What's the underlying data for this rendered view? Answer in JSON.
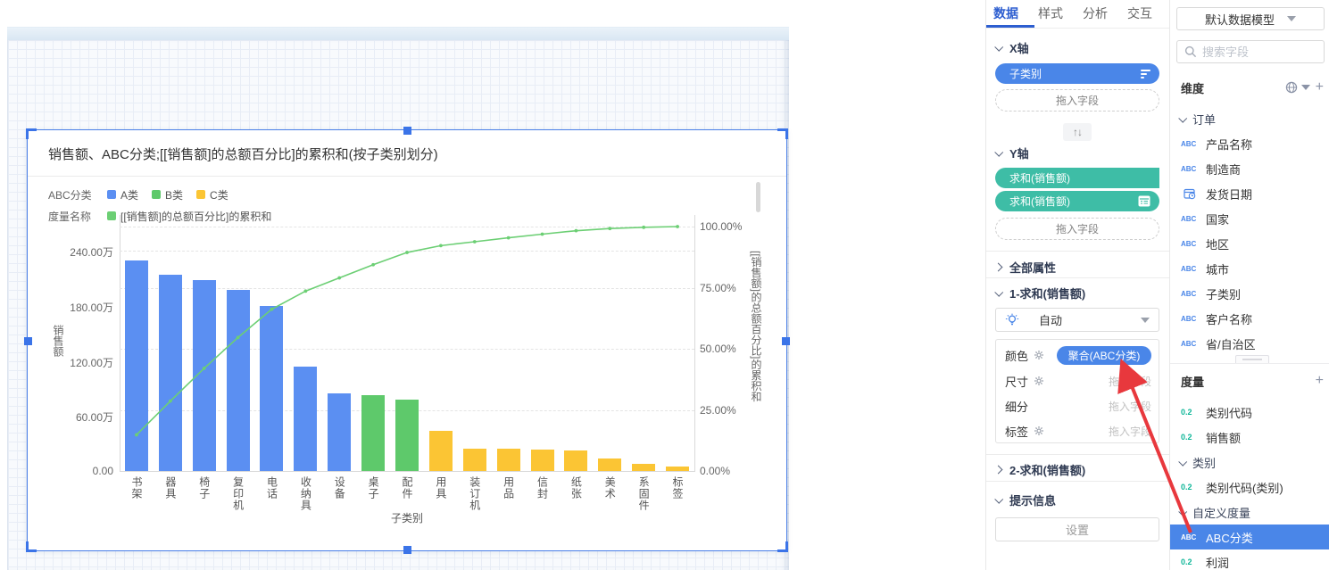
{
  "colors": {
    "accent_blue": "#4a86e8",
    "tab_active_blue": "#2d5ed0",
    "bar_blue": "#5b8ff2",
    "bar_green": "#5ec96b",
    "bar_yellow": "#fbc534",
    "line_green": "#6ccf74",
    "pill_teal": "#3ebda6",
    "selection_blue": "#3b74e8",
    "arrow_red": "#e8383d",
    "measure_icon_teal": "#0fb698"
  },
  "chart_data": {
    "type": "pareto (bar+line)",
    "title": "销售额、ABC分类;[[销售额]的总额百分比]的累积和(按子类别划分)",
    "categories": [
      "书架",
      "器具",
      "椅子",
      "复印机",
      "电话",
      "收纳具",
      "设备",
      "桌子",
      "配件",
      "用具",
      "装订机",
      "用品",
      "信封",
      "纸张",
      "美术",
      "系固件",
      "标签"
    ],
    "xlabel": "子类别",
    "series": [
      {
        "name": "求和(销售额)",
        "type": "bar",
        "axis": "left",
        "unit": "万",
        "values_wan": [
          230,
          214,
          208,
          197,
          180,
          114,
          85,
          83,
          78,
          44,
          24.5,
          24.5,
          23.5,
          22.5,
          13.5,
          8,
          4.5
        ],
        "abc_class": [
          "A类",
          "A类",
          "A类",
          "A类",
          "A类",
          "A类",
          "A类",
          "B类",
          "B类",
          "C类",
          "C类",
          "C类",
          "C类",
          "C类",
          "C类",
          "C类",
          "C类"
        ]
      },
      {
        "name": "[[销售额]的总额百分比]的累积和",
        "type": "line",
        "axis": "right",
        "unit": "%",
        "values_pct": [
          14.8,
          28.6,
          42.0,
          54.6,
          66.2,
          73.6,
          79.0,
          84.4,
          89.4,
          92.2,
          93.8,
          95.4,
          96.9,
          98.3,
          99.2,
          99.7,
          100.0
        ]
      }
    ],
    "left_axis": {
      "label": "销售额",
      "ticks": [
        "0.00",
        "60.00万",
        "120.00万",
        "180.00万",
        "240.00万"
      ],
      "tick_values_wan": [
        0,
        60,
        120,
        180,
        240
      ],
      "lim_wan": [
        0,
        245
      ]
    },
    "right_axis": {
      "label": "[[销售额]的总额百分比]的累积和",
      "ticks": [
        "0.00%",
        "25.00%",
        "50.00%",
        "75.00%",
        "100.00%"
      ],
      "tick_values": [
        0,
        25,
        50,
        75,
        100
      ],
      "lim": [
        0,
        100
      ]
    },
    "grid": "dashed horizontal gridlines",
    "legend_position": "top-left",
    "legend": {
      "rows": [
        {
          "label": "ABC分类",
          "items": [
            {
              "name": "A类",
              "class": "A类"
            },
            {
              "name": "B类",
              "class": "B类"
            },
            {
              "name": "C类",
              "class": "C类"
            }
          ]
        },
        {
          "label": "度量名称",
          "items": [
            {
              "name": "[[销售额]的总额百分比]的累积和",
              "class": "line"
            }
          ]
        }
      ]
    }
  },
  "config_panel": {
    "tabs": [
      {
        "label": "数据",
        "active": true
      },
      {
        "label": "样式",
        "active": false
      },
      {
        "label": "分析",
        "active": false
      },
      {
        "label": "交互",
        "active": false
      }
    ],
    "x_axis_title": "X轴",
    "x_pills": [
      {
        "label": "子类别",
        "icon": "sort-icon"
      }
    ],
    "x_drop": "拖入字段",
    "swap_label": "↑↓",
    "y_axis_title": "Y轴",
    "y_pills": [
      {
        "label": "求和(销售额)"
      },
      {
        "label": "求和(销售额)",
        "icon": "table-icon"
      }
    ],
    "y_drop": "拖入字段",
    "all_props_title": "全部属性",
    "series1_title": "1-求和(销售额)",
    "mode_value": "自动",
    "props": [
      {
        "label": "颜色",
        "gear": true,
        "pill": "聚合(ABC分类)"
      },
      {
        "label": "尺寸",
        "gear": true,
        "drop": "拖入字段"
      },
      {
        "label": "细分",
        "gear": false,
        "drop": "拖入字段"
      },
      {
        "label": "标签",
        "gear": true,
        "drop": "拖入字段"
      }
    ],
    "series2_title": "2-求和(销售额)",
    "tooltip_title": "提示信息",
    "settings_button": "设置"
  },
  "field_panel": {
    "model_select": "默认数据模型",
    "search_placeholder": "搜索字段",
    "dimensions_title": "维度",
    "dimension_rows": [
      {
        "type": "group",
        "label": "订单"
      },
      {
        "type": "item",
        "icon": "abc",
        "label": "产品名称"
      },
      {
        "type": "item",
        "icon": "abc",
        "label": "制造商"
      },
      {
        "type": "item",
        "icon": "date",
        "label": "发货日期"
      },
      {
        "type": "item",
        "icon": "abc",
        "label": "国家"
      },
      {
        "type": "item",
        "icon": "abc",
        "label": "地区"
      },
      {
        "type": "item",
        "icon": "abc",
        "label": "城市"
      },
      {
        "type": "item",
        "icon": "abc",
        "label": "子类别"
      },
      {
        "type": "item",
        "icon": "abc",
        "label": "客户名称"
      },
      {
        "type": "item",
        "icon": "abc",
        "label": "省/自治区"
      }
    ],
    "measures_title": "度量",
    "measure_rows": [
      {
        "type": "item",
        "icon": "num",
        "label": "类别代码"
      },
      {
        "type": "item",
        "icon": "num",
        "label": "销售额"
      },
      {
        "type": "group",
        "label": "类别"
      },
      {
        "type": "item",
        "icon": "num",
        "label": "类别代码(类别)"
      },
      {
        "type": "group",
        "label": "自定义度量"
      },
      {
        "type": "item",
        "icon": "abc",
        "label": "ABC分类",
        "selected": true
      },
      {
        "type": "item",
        "icon": "num",
        "label": "利润"
      }
    ]
  },
  "annotation": {
    "type": "arrow",
    "from": "ABC分类",
    "to": "聚合(ABC分类)"
  }
}
